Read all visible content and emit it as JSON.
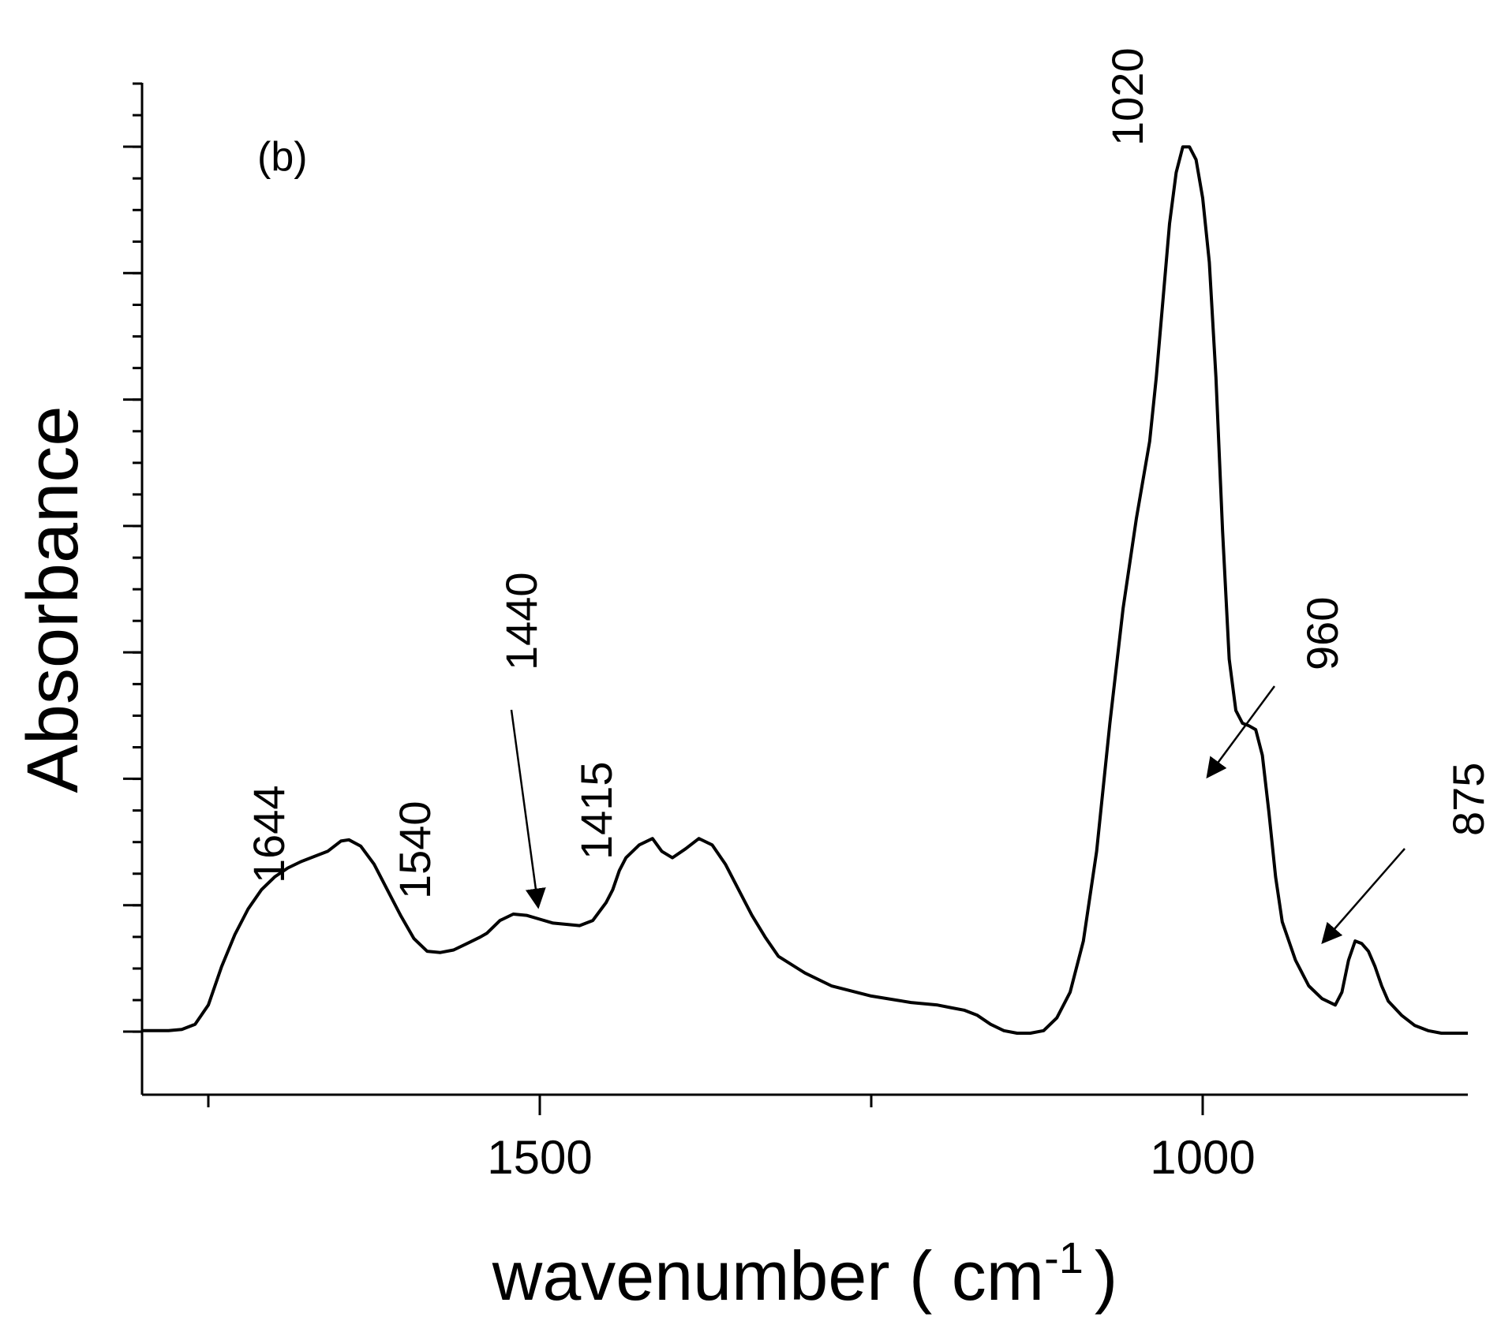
{
  "chart_data": {
    "type": "line",
    "panel_label": "(b)",
    "title": "",
    "xlabel": "wavenumber ( cm",
    "xlabel_superscript": "-1",
    "xlabel_suffix": ")",
    "ylabel": "Absorbance",
    "xlim": [
      1800,
      800
    ],
    "x_reversed": true,
    "x_tick_labels": [
      {
        "value": 1500,
        "label": "1500"
      },
      {
        "value": 1000,
        "label": "1000"
      }
    ],
    "x_minor_ticks": [
      1750,
      1500,
      1250,
      1000,
      750
    ],
    "ylim": [
      -0.04,
      0.75
    ],
    "y_tick_count": 8,
    "y_ticks_labeled": false,
    "grid": false,
    "legend": "none",
    "line_color": "#000000",
    "annotations": [
      {
        "label": "1644",
        "x": 1644
      },
      {
        "label": "1540",
        "x": 1540
      },
      {
        "label": "1440",
        "x": 1440,
        "arrow": true
      },
      {
        "label": "1415",
        "x": 1415
      },
      {
        "label": "1020",
        "x": 1020
      },
      {
        "label": "960",
        "x": 960,
        "arrow": true
      },
      {
        "label": "875",
        "x": 875,
        "arrow": true
      }
    ],
    "series": [
      {
        "x": [
          1800,
          1790,
          1780,
          1770,
          1760,
          1750,
          1740,
          1730,
          1720,
          1710,
          1700,
          1690,
          1680,
          1670,
          1660,
          1650,
          1644,
          1635,
          1625,
          1615,
          1605,
          1595,
          1585,
          1575,
          1565,
          1555,
          1545,
          1540,
          1530,
          1520,
          1510,
          1500,
          1490,
          1480,
          1470,
          1460,
          1450,
          1445,
          1440,
          1435,
          1425,
          1415,
          1408,
          1400,
          1390,
          1380,
          1370,
          1360,
          1350,
          1340,
          1330,
          1320,
          1300,
          1280,
          1250,
          1220,
          1200,
          1190,
          1180,
          1170,
          1160,
          1150,
          1140,
          1130,
          1120,
          1110,
          1100,
          1090,
          1080,
          1070,
          1060,
          1050,
          1040,
          1035,
          1030,
          1025,
          1020,
          1015,
          1010,
          1005,
          1000,
          995,
          990,
          985,
          980,
          975,
          970,
          965,
          960,
          955,
          950,
          945,
          940,
          930,
          920,
          910,
          900,
          895,
          890,
          885,
          880,
          875,
          870,
          865,
          860,
          850,
          840,
          830,
          820,
          810,
          800
        ],
        "y": [
          0.01,
          0.01,
          0.01,
          0.011,
          0.015,
          0.03,
          0.06,
          0.085,
          0.105,
          0.12,
          0.13,
          0.137,
          0.142,
          0.146,
          0.15,
          0.158,
          0.159,
          0.154,
          0.14,
          0.12,
          0.1,
          0.082,
          0.072,
          0.071,
          0.073,
          0.078,
          0.083,
          0.086,
          0.096,
          0.101,
          0.1,
          0.097,
          0.094,
          0.093,
          0.092,
          0.096,
          0.11,
          0.12,
          0.135,
          0.145,
          0.155,
          0.16,
          0.15,
          0.145,
          0.152,
          0.16,
          0.155,
          0.14,
          0.12,
          0.1,
          0.083,
          0.068,
          0.055,
          0.045,
          0.037,
          0.032,
          0.03,
          0.028,
          0.026,
          0.022,
          0.015,
          0.01,
          0.008,
          0.008,
          0.01,
          0.02,
          0.04,
          0.08,
          0.15,
          0.25,
          0.34,
          0.41,
          0.47,
          0.52,
          0.58,
          0.64,
          0.68,
          0.7,
          0.7,
          0.69,
          0.66,
          0.61,
          0.52,
          0.4,
          0.3,
          0.26,
          0.25,
          0.248,
          0.245,
          0.225,
          0.18,
          0.13,
          0.095,
          0.065,
          0.045,
          0.035,
          0.03,
          0.04,
          0.065,
          0.08,
          0.078,
          0.072,
          0.06,
          0.045,
          0.033,
          0.022,
          0.014,
          0.01,
          0.008,
          0.008,
          0.008
        ]
      }
    ]
  }
}
